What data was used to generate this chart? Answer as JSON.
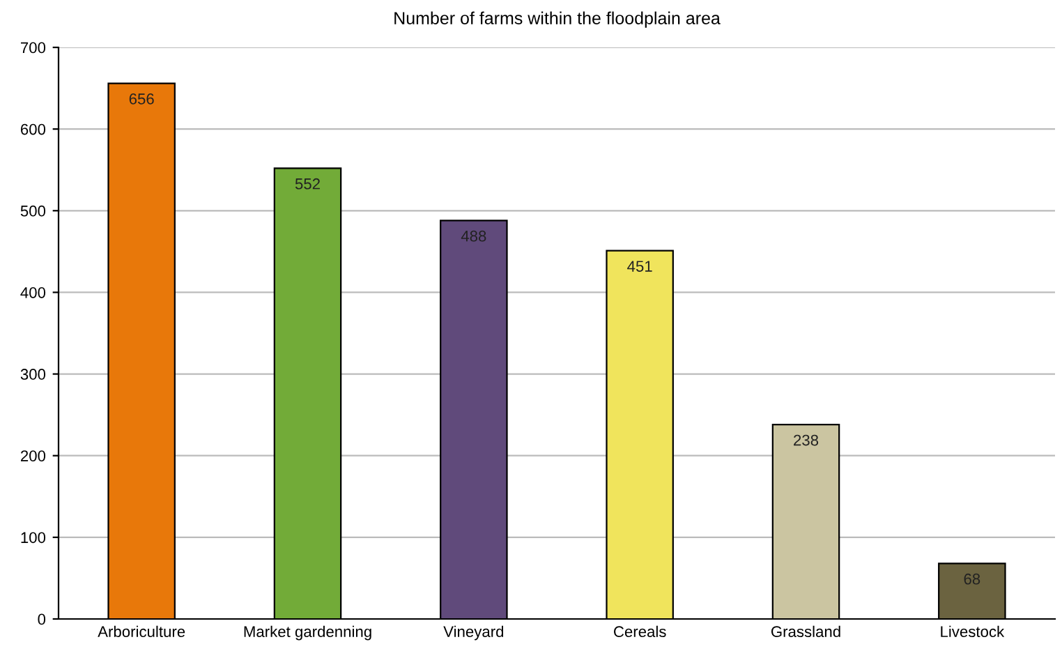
{
  "chart_data": {
    "type": "bar",
    "title": "Number of farms within the floodplain area",
    "categories": [
      "Arboriculture",
      "Market gardenning",
      "Vineyard",
      "Cereals",
      "Grassland",
      "Livestock"
    ],
    "values": [
      656,
      552,
      488,
      451,
      238,
      68
    ],
    "colors": [
      "#e8780a",
      "#72ab38",
      "#604a7b",
      "#f0e45c",
      "#cbc5a1",
      "#6b6340"
    ],
    "ylim": [
      0,
      700
    ],
    "yticks": [
      0,
      100,
      200,
      300,
      400,
      500,
      600,
      700
    ],
    "grid": "y",
    "data_labels": true,
    "legend": false
  }
}
